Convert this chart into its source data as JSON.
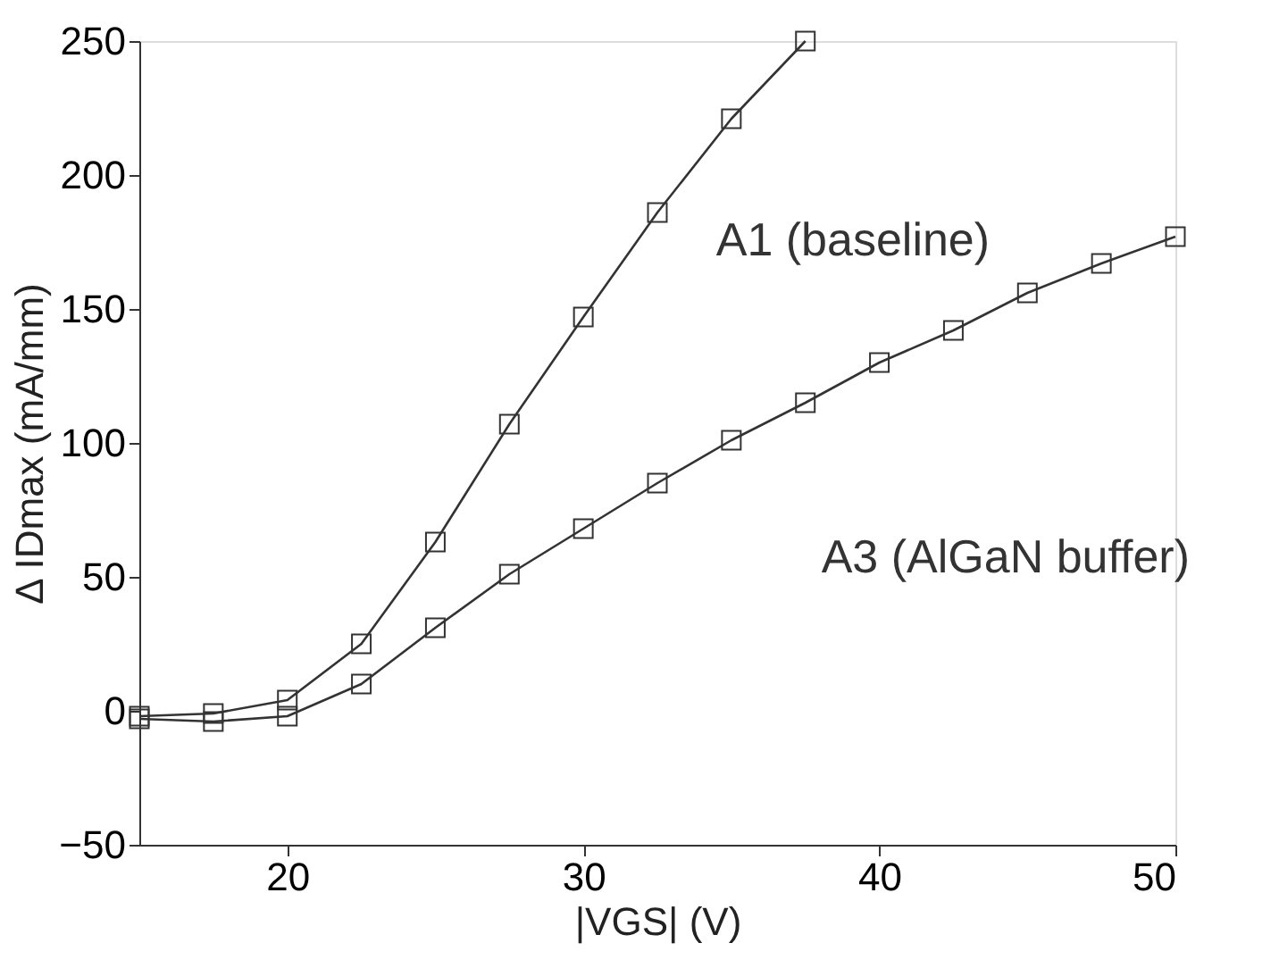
{
  "chart_data": {
    "type": "line",
    "xlabel": "|VGS| (V)",
    "ylabel": "Δ IDmax (mA/mm)",
    "xlim": [
      15,
      50
    ],
    "xticks": [
      20,
      30,
      40,
      50
    ],
    "ylim": [
      -50,
      250
    ],
    "yticks": [
      -50,
      0,
      50,
      100,
      150,
      200,
      250
    ],
    "grid": false,
    "marker": "square",
    "line_style": "solid",
    "series": [
      {
        "name": "A1 (baseline)",
        "color": "#333333",
        "x": [
          15,
          17.5,
          20,
          22.5,
          25,
          27.5,
          30,
          32.5,
          35,
          37.5
        ],
        "values": [
          -2,
          -1,
          4,
          25,
          63,
          107,
          147,
          186,
          221,
          250
        ]
      },
      {
        "name": "A3 (AlGaN buffer)",
        "color": "#333333",
        "x": [
          15,
          17.5,
          20,
          22.5,
          25,
          27.5,
          30,
          32.5,
          35,
          37.5,
          40,
          42.5,
          45,
          47.5,
          50
        ],
        "values": [
          -3,
          -4,
          -2,
          10,
          31,
          51,
          68,
          85,
          101,
          115,
          130,
          142,
          156,
          167,
          177
        ]
      }
    ]
  }
}
